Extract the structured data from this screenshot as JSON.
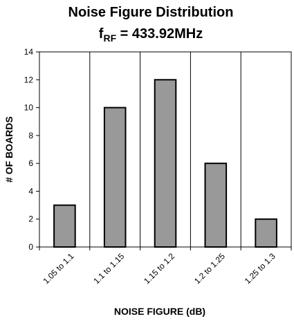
{
  "chart_data": {
    "type": "bar",
    "title": "Noise Figure Distribution",
    "subtitle_prefix": "f",
    "subtitle_subscript": "RF",
    "subtitle_suffix": " = 433.92MHz",
    "xlabel": "NOISE FIGURE (dB)",
    "ylabel": "# OF BOARDS",
    "categories": [
      "1.05 to 1.1",
      "1.1 to 1.15",
      "1.15 to 1.2",
      "1.2 to 1.25",
      "1.25 to 1.3"
    ],
    "values": [
      3,
      10,
      12,
      6,
      2
    ],
    "ylim": [
      0,
      14
    ],
    "yticks": [
      0,
      2,
      4,
      6,
      8,
      10,
      12,
      14
    ],
    "grid": "vertical",
    "bar_color": "#999999",
    "legend": "none"
  }
}
